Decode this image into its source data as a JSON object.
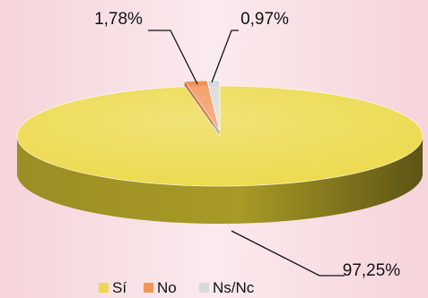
{
  "colors": {
    "background": "#f8dfe3",
    "background_band": "#fbe9ec"
  },
  "chart_data": {
    "type": "pie",
    "style": "3d",
    "title": "",
    "slices": [
      {
        "label": "Sí",
        "value": 97.25,
        "value_label": "97,25%",
        "color": "#ecd94a",
        "side_color": "#a89a26"
      },
      {
        "label": "No",
        "value": 1.78,
        "value_label": "1,78%",
        "color": "#f2945a",
        "side_color": "#b7602c"
      },
      {
        "label": "Ns/Nc",
        "value": 0.97,
        "value_label": "0,97%",
        "color": "#d9d9d9",
        "side_color": "#9a9a9a"
      }
    ],
    "legend": {
      "position": "bottom",
      "entries": [
        "Sí",
        "No",
        "Ns/Nc"
      ]
    }
  }
}
